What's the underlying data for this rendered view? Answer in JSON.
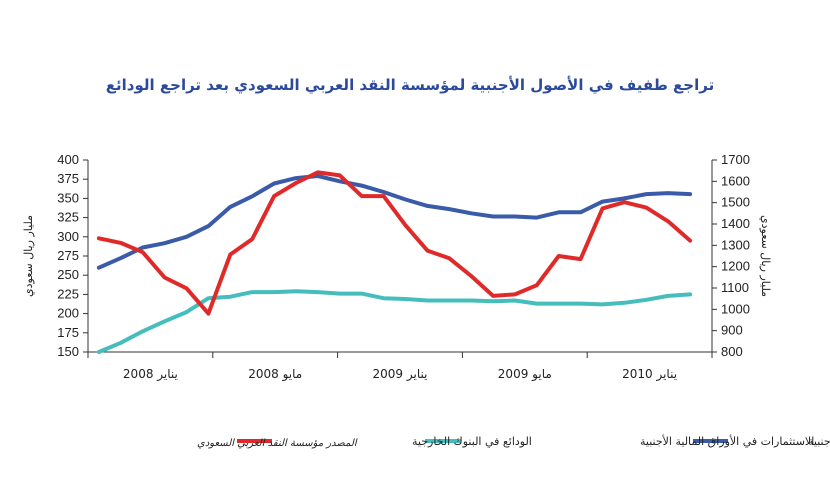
{
  "chart_data": {
    "type": "line",
    "title": "تراجع طفيف في الأصول الأجنبية لمؤسسة النقد العربي السعودي بعد تراجع الودائع",
    "ylabel_left": "مليار ريال سعودي",
    "ylabel_right": "مليار ريال سعودي",
    "ylim_left": [
      150,
      400
    ],
    "ylim_right": [
      800,
      1700
    ],
    "yticks_left": [
      "150",
      "175",
      "200",
      "225",
      "250",
      "275",
      "300",
      "325",
      "350",
      "375",
      "400"
    ],
    "yticks_right": [
      "800",
      "900",
      "1000",
      "1100",
      "1200",
      "1300",
      "1400",
      "1500",
      "1600",
      "1700"
    ],
    "x_tick_labels": [
      "يناير 2008",
      "مايو 2008",
      "يناير 2009",
      "مايو 2009",
      "يناير 2010"
    ],
    "grid": false,
    "legend_position": "bottom",
    "series": [
      {
        "name": "صافي الاصول الأجنبية",
        "axis": "right",
        "color": "#3a5ba8",
        "values": [
          1195,
          1240,
          1290,
          1310,
          1340,
          1390,
          1480,
          1530,
          1590,
          1615,
          1625,
          1600,
          1580,
          1550,
          1515,
          1485,
          1470,
          1450,
          1435,
          1435,
          1430,
          1455,
          1455,
          1505,
          1520,
          1540,
          1545,
          1540
        ]
      },
      {
        "name": "الاستثمارات في الأوراق المالية الأجنبية",
        "axis": "left",
        "color": "#45bdbd",
        "values": [
          150,
          162,
          177,
          190,
          202,
          220,
          222,
          228,
          228,
          229,
          228,
          226,
          226,
          220,
          219,
          217,
          217,
          217,
          216,
          217,
          213,
          213,
          213,
          212,
          214,
          218,
          223,
          225
        ]
      },
      {
        "name": "الودائع في البنوك الخارجية",
        "axis": "left",
        "color": "#e02a2a",
        "values": [
          298,
          292,
          280,
          247,
          233,
          200,
          277,
          297,
          353,
          370,
          384,
          380,
          353,
          353,
          315,
          282,
          272,
          249,
          223,
          225,
          237,
          275,
          271,
          337,
          345,
          338,
          320,
          295
        ]
      }
    ]
  },
  "source_note": "المصدر مؤسسة النقد العربي السعودي"
}
